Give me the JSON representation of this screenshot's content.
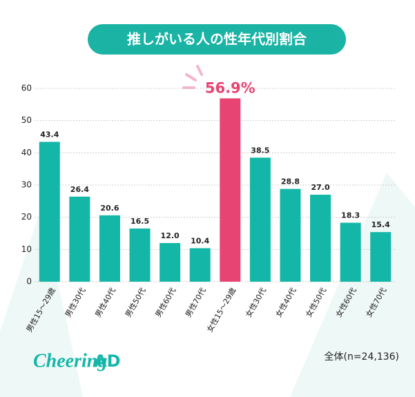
{
  "chart_data": {
    "type": "bar",
    "title": "推しがいる人の性年代別割合",
    "categories": [
      "男性15～29歳",
      "男性30代",
      "男性40代",
      "男性50代",
      "男性60代",
      "男性70代",
      "女性15～29歳",
      "女性30代",
      "女性40代",
      "女性50代",
      "女性60代",
      "女性70代"
    ],
    "values": [
      43.4,
      26.4,
      20.6,
      16.5,
      12.0,
      10.4,
      56.9,
      38.5,
      28.8,
      27.0,
      18.3,
      15.4
    ],
    "value_labels": [
      "43.4",
      "26.4",
      "20.6",
      "16.5",
      "12.0",
      "10.4",
      "56.9%",
      "38.5",
      "28.8",
      "27.0",
      "18.3",
      "15.4"
    ],
    "colors": [
      "#14b7a7",
      "#14b7a7",
      "#14b7a7",
      "#14b7a7",
      "#14b7a7",
      "#14b7a7",
      "#e84473",
      "#14b7a7",
      "#14b7a7",
      "#14b7a7",
      "#14b7a7",
      "#14b7a7"
    ],
    "ylim": [
      0,
      60
    ],
    "yticks": [
      0,
      10,
      20,
      30,
      40,
      50,
      60
    ],
    "grid": true,
    "note": "全体(n=24,136)",
    "logo": [
      "Cheering",
      "AD"
    ]
  }
}
